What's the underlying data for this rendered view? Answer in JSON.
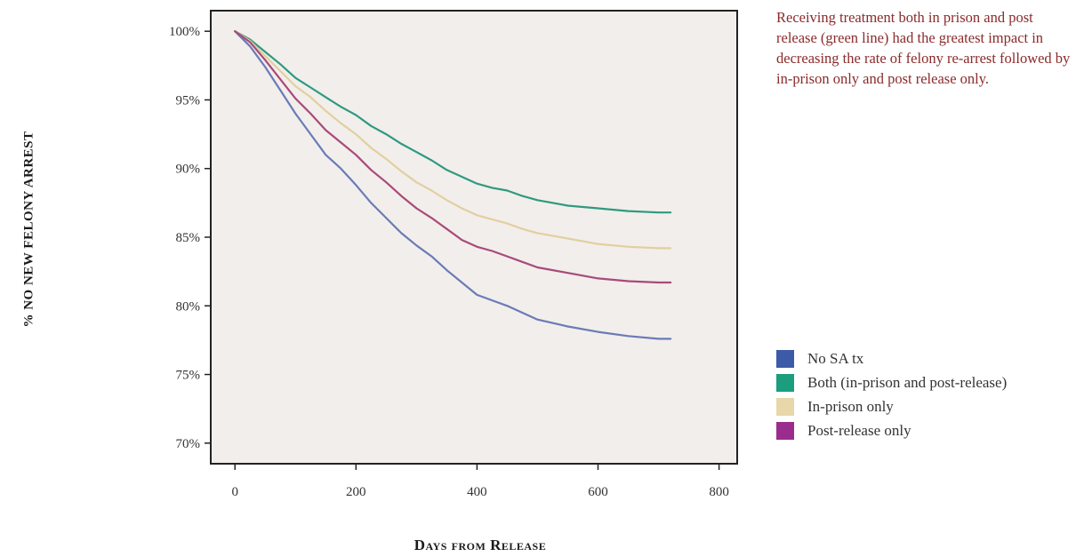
{
  "chart_data": {
    "type": "line",
    "xlabel": "Days from Release",
    "ylabel": "% NO NEW FELONY ARREST",
    "xlim": [
      -40,
      830
    ],
    "ylim": [
      68.5,
      101.5
    ],
    "x_ticks": [
      0,
      200,
      400,
      600,
      800
    ],
    "x_tick_labels": [
      "0",
      "200",
      "400",
      "600",
      "800"
    ],
    "y_ticks": [
      100,
      95,
      90,
      85,
      80,
      75,
      70
    ],
    "y_tick_labels": [
      "100%",
      "95%",
      "90%",
      "85%",
      "80%",
      "75%",
      "70%"
    ],
    "plot_background": "#f2eeeb",
    "legend_placement": "right",
    "series": [
      {
        "name": "No SA tx",
        "color": "#3c5aa8",
        "line_color": "#6a7bb8",
        "x": [
          0,
          25,
          50,
          75,
          100,
          125,
          150,
          175,
          200,
          225,
          250,
          275,
          300,
          325,
          350,
          375,
          400,
          425,
          450,
          475,
          500,
          550,
          600,
          650,
          700,
          720
        ],
        "y": [
          100,
          98.9,
          97.4,
          95.7,
          94.0,
          92.5,
          91.0,
          90.0,
          88.8,
          87.5,
          86.4,
          85.3,
          84.4,
          83.6,
          82.6,
          81.7,
          80.8,
          80.4,
          80.0,
          79.5,
          79.0,
          78.5,
          78.1,
          77.8,
          77.6,
          77.6
        ]
      },
      {
        "name": "Both (in-prison and post-release)",
        "color": "#1a9e7e",
        "line_color": "#2e9a80",
        "x": [
          0,
          25,
          50,
          75,
          100,
          125,
          150,
          175,
          200,
          225,
          250,
          275,
          300,
          325,
          350,
          375,
          400,
          425,
          450,
          475,
          500,
          550,
          600,
          650,
          700,
          720
        ],
        "y": [
          100,
          99.4,
          98.5,
          97.6,
          96.6,
          95.9,
          95.2,
          94.5,
          93.9,
          93.1,
          92.5,
          91.8,
          91.2,
          90.6,
          89.9,
          89.4,
          88.9,
          88.6,
          88.4,
          88.0,
          87.7,
          87.3,
          87.1,
          86.9,
          86.8,
          86.8
        ]
      },
      {
        "name": "In-prison only",
        "color": "#e8d7a8",
        "line_color": "#e2cfa0",
        "x": [
          0,
          25,
          50,
          75,
          100,
          125,
          150,
          175,
          200,
          225,
          250,
          275,
          300,
          325,
          350,
          375,
          400,
          425,
          450,
          475,
          500,
          550,
          600,
          650,
          700,
          720
        ],
        "y": [
          100,
          99.3,
          98.2,
          97.1,
          96.0,
          95.2,
          94.2,
          93.3,
          92.5,
          91.5,
          90.7,
          89.8,
          89.0,
          88.4,
          87.7,
          87.1,
          86.6,
          86.3,
          86.0,
          85.6,
          85.3,
          84.9,
          84.5,
          84.3,
          84.2,
          84.2
        ]
      },
      {
        "name": "Post-release only",
        "color": "#9a2c8e",
        "line_color": "#a84a7a",
        "x": [
          0,
          25,
          50,
          75,
          100,
          125,
          150,
          175,
          200,
          225,
          250,
          275,
          300,
          325,
          350,
          375,
          400,
          425,
          450,
          475,
          500,
          550,
          600,
          650,
          700,
          720
        ],
        "y": [
          100,
          99.2,
          97.9,
          96.5,
          95.1,
          94.0,
          92.8,
          91.9,
          91.0,
          89.9,
          89.0,
          88.0,
          87.1,
          86.4,
          85.6,
          84.8,
          84.3,
          84.0,
          83.6,
          83.2,
          82.8,
          82.4,
          82.0,
          81.8,
          81.7,
          81.7
        ]
      }
    ]
  },
  "annotation": "Receiving treatment both in prison and post release (green line) had the greatest impact in decreasing the rate of felony re-arrest followed by in-prison only and post release only."
}
